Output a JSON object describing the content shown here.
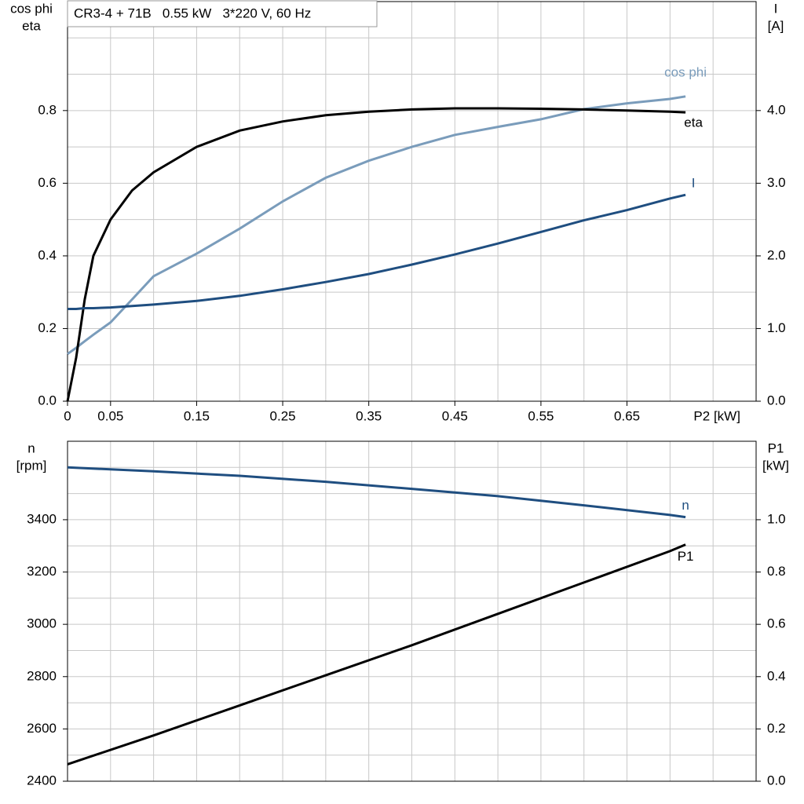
{
  "chart_data": [
    {
      "type": "line",
      "title": "CR3-4 + 71B   0.55 kW   3*220 V, 60 Hz",
      "ylabel": [
        "cos phi",
        "eta"
      ],
      "y2label": [
        "I",
        "[A]"
      ],
      "xlabel": "P2 [kW]",
      "xlim": [
        0,
        0.8
      ],
      "xticks": [
        0,
        0.05,
        0.15,
        0.25,
        0.35,
        0.45,
        0.55,
        0.65
      ],
      "xgrid": [
        0.05,
        0.1,
        0.15,
        0.2,
        0.25,
        0.3,
        0.35,
        0.4,
        0.45,
        0.5,
        0.55,
        0.6,
        0.65,
        0.7,
        0.75
      ],
      "ylim": [
        0,
        1.1
      ],
      "yticks": [
        {
          "value": 0,
          "label": "0.0"
        },
        0.2,
        0.4,
        0.6,
        0.8
      ],
      "ygrid": [
        0.1,
        0.2,
        0.3,
        0.4,
        0.5,
        0.6,
        0.7,
        0.8,
        0.9,
        1.0
      ],
      "y2lim": [
        0,
        5.5
      ],
      "y2ticks": [
        {
          "value": 0,
          "label": "0.0"
        },
        {
          "value": 1,
          "label": "1.0"
        },
        {
          "value": 2,
          "label": "2.0"
        },
        {
          "value": 3,
          "label": "3.0"
        },
        {
          "value": 4,
          "label": "4.0"
        }
      ],
      "x": [
        0,
        0.01,
        0.02,
        0.03,
        0.05,
        0.075,
        0.1,
        0.15,
        0.2,
        0.25,
        0.3,
        0.35,
        0.4,
        0.45,
        0.5,
        0.55,
        0.6,
        0.65,
        0.7,
        0.718
      ],
      "series": [
        {
          "name": "cos phi",
          "color": "#7a9cbb",
          "values": [
            0.13,
            0.147,
            0.165,
            0.183,
            0.217,
            0.28,
            0.344,
            0.406,
            0.475,
            0.55,
            0.615,
            0.662,
            0.7,
            0.733,
            0.755,
            0.776,
            0.804,
            0.82,
            0.832,
            0.839
          ]
        },
        {
          "name": "eta",
          "color": "#000000",
          "values": [
            0,
            0.12,
            0.28,
            0.4,
            0.5,
            0.58,
            0.63,
            0.7,
            0.745,
            0.77,
            0.787,
            0.797,
            0.803,
            0.806,
            0.806,
            0.805,
            0.803,
            0.8,
            0.797,
            0.795
          ]
        },
        {
          "name": "I",
          "color": "#1f4e80",
          "axis": "y2",
          "values": [
            1.27,
            1.27,
            1.28,
            1.28,
            1.29,
            1.31,
            1.33,
            1.38,
            1.45,
            1.54,
            1.64,
            1.75,
            1.88,
            2.02,
            2.17,
            2.33,
            2.49,
            2.63,
            2.79,
            2.84
          ]
        }
      ]
    },
    {
      "type": "line",
      "ylabel": [
        "n",
        "[rpm]"
      ],
      "y2label": [
        "P1",
        "[kW]"
      ],
      "xlim": [
        0,
        0.8
      ],
      "xgrid": [
        0.05,
        0.1,
        0.15,
        0.2,
        0.25,
        0.3,
        0.35,
        0.4,
        0.45,
        0.5,
        0.55,
        0.6,
        0.65,
        0.7,
        0.75
      ],
      "ylim": [
        2400,
        3700
      ],
      "yticks": [
        2400,
        2600,
        2800,
        3000,
        3200,
        3400
      ],
      "ygrid": [
        2500,
        2600,
        2700,
        2800,
        2900,
        3000,
        3100,
        3200,
        3300,
        3400,
        3500,
        3600
      ],
      "y2lim": [
        0,
        1.3
      ],
      "y2ticks": [
        {
          "value": 0,
          "label": "0.0"
        },
        0.2,
        0.4,
        0.6,
        0.8,
        {
          "value": 1,
          "label": "1.0"
        }
      ],
      "x": [
        0,
        0.1,
        0.2,
        0.3,
        0.4,
        0.5,
        0.6,
        0.7,
        0.718
      ],
      "series": [
        {
          "name": "n",
          "color": "#1f4e80",
          "values": [
            3600,
            3585,
            3568,
            3545,
            3518,
            3490,
            3455,
            3418,
            3410
          ]
        },
        {
          "name": "P1",
          "color": "#000000",
          "axis": "y2",
          "values": [
            0.065,
            0.175,
            0.29,
            0.405,
            0.52,
            0.64,
            0.76,
            0.88,
            0.905
          ]
        }
      ]
    }
  ]
}
